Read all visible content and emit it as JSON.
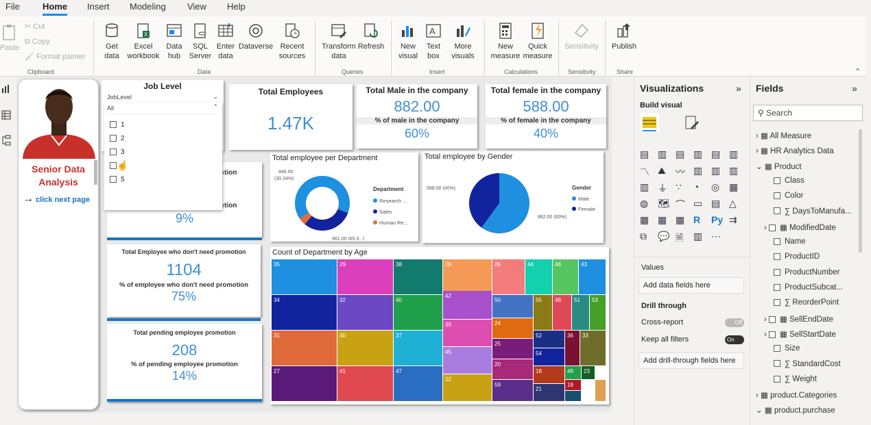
{
  "menu": {
    "tabs": [
      "File",
      "Home",
      "Insert",
      "Modeling",
      "View",
      "Help"
    ]
  },
  "ribbon": {
    "clipboard": {
      "paste": "Paste",
      "cut": "Cut",
      "copy": "Copy",
      "format_painter": "Format painter",
      "label": "Clipboard"
    },
    "data": {
      "get_data": "Get data",
      "excel": "Excel workbook",
      "data_hub": "Data hub",
      "sql": "SQL Server",
      "enter": "Enter data",
      "dataverse": "Dataverse",
      "recent": "Recent sources",
      "label": "Data"
    },
    "queries": {
      "transform": "Transform data",
      "refresh": "Refresh",
      "label": "Queries"
    },
    "insert": {
      "new_visual": "New visual",
      "text_box": "Text box",
      "more_visuals": "More visuals",
      "label": "Insert"
    },
    "calculations": {
      "new_measure": "New measure",
      "quick_measure": "Quick measure",
      "label": "Calculations"
    },
    "sensitivity": {
      "btn": "Sensitivity",
      "label": "Sensitivity"
    },
    "share": {
      "publish": "Publish",
      "label": "Share"
    }
  },
  "profile": {
    "title": "Senior Data Analysis",
    "link": "click next page"
  },
  "slicer": {
    "title": "Job Level",
    "field": "JobLevel",
    "selected": "All",
    "options": [
      "1",
      "2",
      "3",
      "4",
      "5"
    ]
  },
  "cards": {
    "total_employees": {
      "title": "Total Employees",
      "value": "1.47K"
    },
    "male": {
      "title": "Total Male in the company",
      "value": "882.00",
      "sub": "% of male in the company",
      "pct": "60%"
    },
    "female": {
      "title": "Total female in the company",
      "value": "588.00",
      "sub": "% of female in the company",
      "pct": "40%"
    },
    "promo1": {
      "title": "promotion",
      "sub": "promotion",
      "pct": "9%"
    },
    "no_promo": {
      "title": "Total Employee who don't need promotion",
      "value": "1104",
      "sub": "% of employee who don't need promotion",
      "pct": "75%"
    },
    "pending": {
      "title": "Total pending employee promotion",
      "value": "208",
      "sub": "% of pending employee promotion",
      "pct": "14%"
    }
  },
  "chart_data": [
    {
      "type": "pie",
      "title": "Total employee per Department",
      "legend_title": "Department",
      "labels": [
        "Research ...",
        "Sales",
        "Human Re..."
      ],
      "values": [
        961,
        446,
        63
      ],
      "data_labels": [
        "961.00 (65.3...)",
        "446.00 (30.34%)",
        ""
      ],
      "colors": [
        "#1f8fe0",
        "#12239e",
        "#e66c37"
      ]
    },
    {
      "type": "pie",
      "title": "Total employee by Gender",
      "legend_title": "Gender",
      "labels": [
        "Male",
        "Female"
      ],
      "values": [
        882,
        588
      ],
      "data_labels": [
        "882.00 (60%)",
        "588.00 (40%)"
      ],
      "colors": [
        "#1f8fe0",
        "#12239e"
      ]
    },
    {
      "type": "heatmap",
      "title": "Count of Department by Age",
      "cells": [
        "35",
        "29",
        "38",
        "28",
        "26",
        "44",
        "46",
        "43",
        "34",
        "32",
        "40",
        "42",
        "50",
        "55",
        "48",
        "51",
        "53",
        "39",
        "24",
        "31",
        "30",
        "37",
        "25",
        "52",
        "45",
        "54",
        "36",
        "33",
        "27",
        "41",
        "47",
        "22",
        "20",
        "18",
        "49",
        "23",
        "59",
        "21",
        "19"
      ]
    }
  ],
  "visualizations": {
    "title": "Visualizations",
    "build": "Build visual",
    "values": "Values",
    "add_fields": "Add data fields here",
    "drill": "Drill through",
    "cross": "Cross-report",
    "cross_state": "Off",
    "keep": "Keep all filters",
    "keep_state": "On",
    "add_drill": "Add drill-through fields here"
  },
  "fields": {
    "title": "Fields",
    "search": "Search",
    "items": [
      "All Measure",
      "HR Analytics Data",
      "Product",
      "Class",
      "Color",
      "DaysToManufa...",
      "ModifiedDate",
      "Name",
      "ProductID",
      "ProductNumber",
      "ProductSubcat...",
      "ReorderPoint",
      "SellEndDate",
      "SellStartDate",
      "Size",
      "StandardCost",
      "Weight",
      "product.Categories",
      "product.purchase"
    ]
  },
  "colors": {
    "accent": "#118dff",
    "kpi_blue": "#3e8fd6",
    "bar_blue": "#1a74c7",
    "profile_red": "#c8312a"
  }
}
